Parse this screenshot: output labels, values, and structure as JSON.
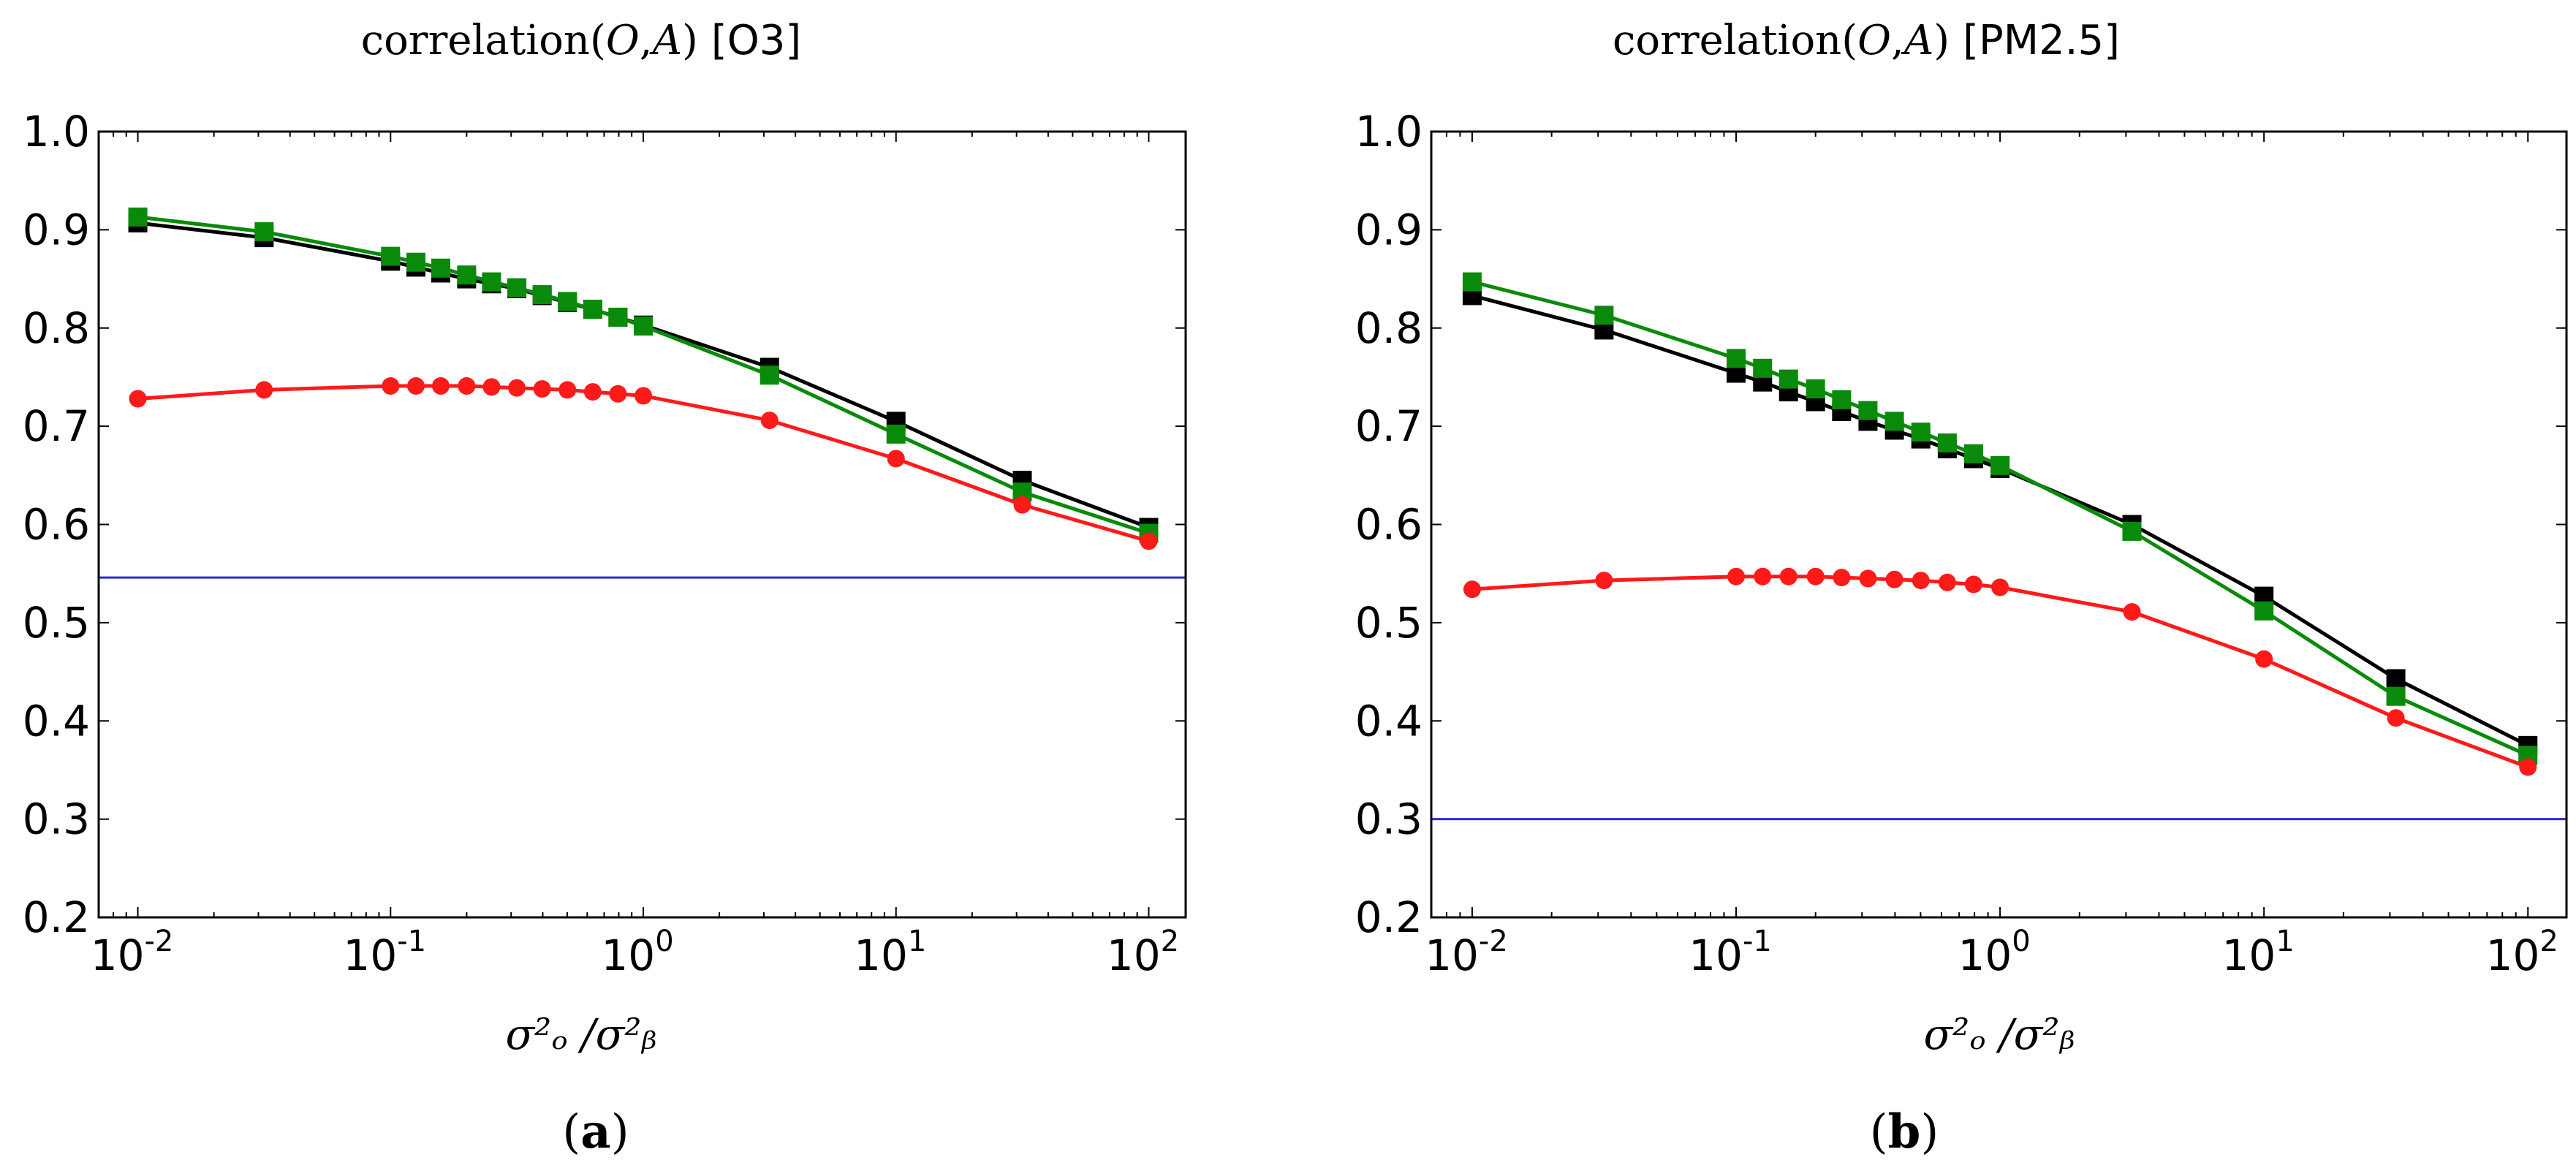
{
  "chart_data": [
    {
      "type": "line",
      "panel": "(a)",
      "panel_letter": "a",
      "title_main": "correlation(",
      "title_O": "O",
      "title_comma": ",",
      "title_A": "A",
      "title_close": ")",
      "title_tag": "[O3]",
      "xlabel": "σ²ₒ /σ²ᵦ",
      "xscale": "log",
      "xlim": [
        0.007,
        140
      ],
      "ylim": [
        0.2,
        1.0
      ],
      "yticks": [
        "0.2",
        "0.3",
        "0.4",
        "0.5",
        "0.6",
        "0.7",
        "0.8",
        "0.9",
        "1.0"
      ],
      "xticks": [
        {
          "base": "10",
          "exp": "-2"
        },
        {
          "base": "10",
          "exp": "-1"
        },
        {
          "base": "10",
          "exp": "0"
        },
        {
          "base": "10",
          "exp": "1"
        },
        {
          "base": "10",
          "exp": "2"
        }
      ],
      "x": [
        0.01,
        0.0316,
        0.1,
        0.126,
        0.158,
        0.2,
        0.251,
        0.316,
        0.398,
        0.501,
        0.631,
        0.794,
        1.0,
        3.16,
        10,
        31.6,
        100
      ],
      "hline": {
        "value": 0.546,
        "color": "#2a2ad6"
      },
      "series": [
        {
          "name": "black",
          "color": "#000000",
          "marker": "square",
          "values": [
            0.907,
            0.892,
            0.868,
            0.862,
            0.856,
            0.85,
            0.845,
            0.84,
            0.833,
            0.826,
            0.819,
            0.811,
            0.803,
            0.76,
            0.705,
            0.645,
            0.597
          ]
        },
        {
          "name": "green",
          "color": "#0a8a0a",
          "marker": "square",
          "values": [
            0.913,
            0.898,
            0.873,
            0.867,
            0.861,
            0.854,
            0.847,
            0.841,
            0.834,
            0.827,
            0.819,
            0.811,
            0.802,
            0.752,
            0.692,
            0.633,
            0.591
          ]
        },
        {
          "name": "red",
          "color": "#ff1a1a",
          "marker": "circle",
          "values": [
            0.728,
            0.737,
            0.741,
            0.741,
            0.741,
            0.741,
            0.74,
            0.739,
            0.738,
            0.737,
            0.735,
            0.733,
            0.731,
            0.706,
            0.667,
            0.62,
            0.583
          ]
        }
      ]
    },
    {
      "type": "line",
      "panel": "(b)",
      "panel_letter": "b",
      "title_main": "correlation(",
      "title_O": "O",
      "title_comma": ",",
      "title_A": "A",
      "title_close": ")",
      "title_tag": "[PM2.5]",
      "xlabel": "σ²ₒ /σ²ᵦ",
      "xscale": "log",
      "xlim": [
        0.007,
        140
      ],
      "ylim": [
        0.2,
        1.0
      ],
      "yticks": [
        "0.2",
        "0.3",
        "0.4",
        "0.5",
        "0.6",
        "0.7",
        "0.8",
        "0.9",
        "1.0"
      ],
      "xticks": [
        {
          "base": "10",
          "exp": "-2"
        },
        {
          "base": "10",
          "exp": "-1"
        },
        {
          "base": "10",
          "exp": "0"
        },
        {
          "base": "10",
          "exp": "1"
        },
        {
          "base": "10",
          "exp": "2"
        }
      ],
      "x": [
        0.01,
        0.0316,
        0.1,
        0.126,
        0.158,
        0.2,
        0.251,
        0.316,
        0.398,
        0.501,
        0.631,
        0.794,
        1.0,
        3.16,
        10,
        31.6,
        100
      ],
      "hline": {
        "value": 0.3,
        "color": "#2a2ad6"
      },
      "series": [
        {
          "name": "black",
          "color": "#000000",
          "marker": "square",
          "values": [
            0.833,
            0.798,
            0.754,
            0.745,
            0.735,
            0.725,
            0.715,
            0.705,
            0.696,
            0.687,
            0.677,
            0.667,
            0.657,
            0.6,
            0.527,
            0.443,
            0.375
          ]
        },
        {
          "name": "green",
          "color": "#0a8a0a",
          "marker": "square",
          "values": [
            0.847,
            0.813,
            0.769,
            0.759,
            0.748,
            0.738,
            0.727,
            0.716,
            0.705,
            0.694,
            0.683,
            0.672,
            0.66,
            0.593,
            0.512,
            0.425,
            0.365
          ]
        },
        {
          "name": "red",
          "color": "#ff1a1a",
          "marker": "circle",
          "values": [
            0.534,
            0.543,
            0.547,
            0.547,
            0.547,
            0.547,
            0.546,
            0.545,
            0.544,
            0.543,
            0.541,
            0.539,
            0.536,
            0.511,
            0.463,
            0.403,
            0.353
          ]
        }
      ]
    }
  ]
}
